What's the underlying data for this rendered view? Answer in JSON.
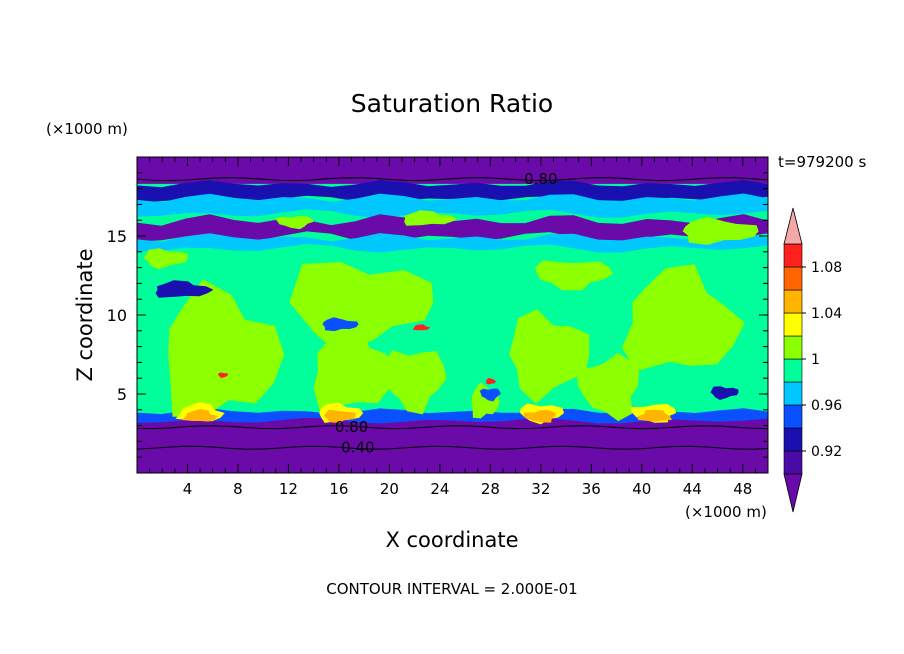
{
  "chart_data": {
    "type": "heatmap",
    "title": "Saturation Ratio",
    "xlabel": "X coordinate",
    "ylabel": "Z coordinate",
    "x_unit": "(×1000 m)",
    "y_unit": "(×1000 m)",
    "time_label": "t=979200 s",
    "footer": "CONTOUR INTERVAL = 2.000E-01",
    "xlim": [
      0,
      50
    ],
    "ylim": [
      0,
      20
    ],
    "x_ticks": [
      4,
      8,
      12,
      16,
      20,
      24,
      28,
      32,
      36,
      40,
      44,
      48
    ],
    "y_ticks": [
      5,
      10,
      15
    ],
    "contour_labels": [
      {
        "text": "0.80",
        "x": 32,
        "y": 18.6
      },
      {
        "text": "0.80",
        "x": 17,
        "y": 2.9
      },
      {
        "text": "0.40",
        "x": 17.5,
        "y": 1.6
      }
    ],
    "colorbar": {
      "levels": [
        0.9,
        0.92,
        0.94,
        0.96,
        0.98,
        1.0,
        1.02,
        1.04,
        1.06,
        1.08,
        1.1
      ],
      "tick_labels": [
        "0.92",
        "0.96",
        "1",
        "1.04",
        "1.08"
      ],
      "tick_values": [
        0.92,
        0.96,
        1.0,
        1.04,
        1.08
      ],
      "colors": [
        "#4b0aa5",
        "#1a10b0",
        "#0a50ff",
        "#00c8ff",
        "#00ff9b",
        "#8cff00",
        "#ffff00",
        "#ffb400",
        "#ff6600",
        "#ff2020"
      ],
      "under_color": "#6a0aa8",
      "over_color": "#f4a8a8"
    },
    "colors": {
      "under": "#6a0aa8",
      "blue_dark": "#1a10b0",
      "blue": "#0a50ff",
      "cyan": "#00c8ff",
      "teal": "#00ff9b",
      "lime": "#8cff00",
      "yellow": "#ffff00",
      "orange": "#ffb400",
      "red": "#ff2020"
    }
  }
}
